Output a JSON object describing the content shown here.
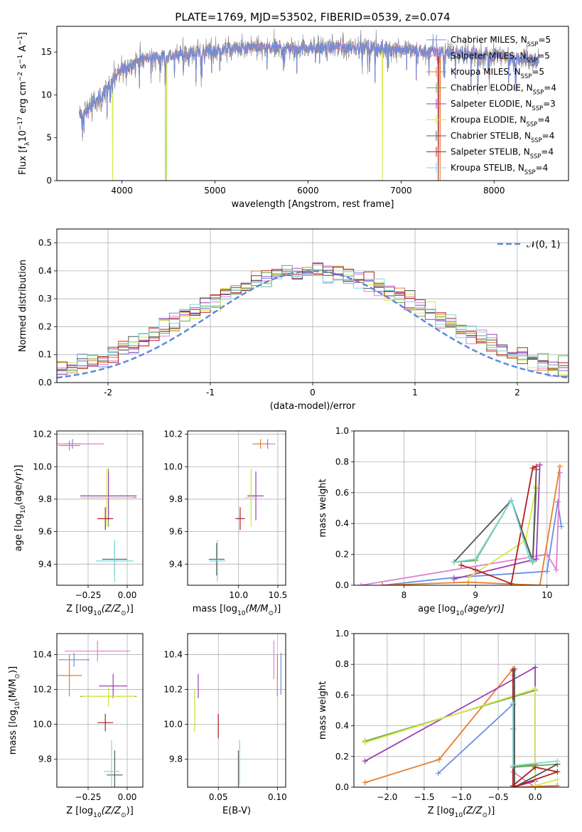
{
  "figure_title": "PLATE=1769, MJD=53502, FIBERID=0539, z=0.074",
  "colors": {
    "Chabrier MILES": "#6a8fe0",
    "Salpeter MILES": "#e07fcf",
    "Kroupa MILES": "#e57f2e",
    "Chabrier ELODIE": "#6aa84f",
    "Salpeter ELODIE": "#9b3fb8",
    "Kroupa ELODIE": "#d8e84a",
    "Chabrier STELIB": "#555555",
    "Salpeter STELIB": "#b01f1f",
    "Kroupa STELIB": "#7fd8d8",
    "normal": "#5f8ad8",
    "grid": "#b0b0b0"
  },
  "chart_data": [
    {
      "type": "line",
      "panel": "spectrum",
      "xlabel": "wavelength [Angstrom, rest frame]",
      "ylabel": "Flux [f",
      "ylabel_sub": "λ",
      "ylabel_rest": "10",
      "ylabel_exp": "−17",
      "ylabel_units": " erg cm",
      "ylabel_exp2": "−2",
      "ylabel_mid": " s",
      "ylabel_exp3": "−1",
      "ylabel_end": " A",
      "ylabel_exp4": "−1",
      "ylabel_close": "]",
      "xlim": [
        3300,
        8800
      ],
      "ylim": [
        0,
        18
      ],
      "xticks": [
        4000,
        5000,
        6000,
        7000,
        8000
      ],
      "yticks": [
        0,
        5,
        10,
        15
      ],
      "legend_position": "right",
      "legend": [
        {
          "name": "Chabrier MILES, N",
          "sub": "SSP",
          "tail": "=5"
        },
        {
          "name": "Salpeter MILES, N",
          "sub": "SSP",
          "tail": "=5"
        },
        {
          "name": "Kroupa MILES, N",
          "sub": "SSP",
          "tail": "=5"
        },
        {
          "name": "Chabrier ELODIE, N",
          "sub": "SSP",
          "tail": "=4"
        },
        {
          "name": "Salpeter ELODIE, N",
          "sub": "SSP",
          "tail": "=3"
        },
        {
          "name": "Kroupa ELODIE, N",
          "sub": "SSP",
          "tail": "=4"
        },
        {
          "name": "Chabrier STELIB, N",
          "sub": "SSP",
          "tail": "=4"
        },
        {
          "name": "Salpeter STELIB, N",
          "sub": "SSP",
          "tail": "=4"
        },
        {
          "name": "Kroupa STELIB, N",
          "sub": "SSP",
          "tail": "=4"
        }
      ],
      "data_range": [
        3540,
        8480
      ],
      "continuum": [
        [
          3540,
          7.5
        ],
        [
          3700,
          9.0
        ],
        [
          3900,
          11.5
        ],
        [
          4000,
          13.0
        ],
        [
          4200,
          14.2
        ],
        [
          4500,
          14.5
        ],
        [
          5000,
          15.2
        ],
        [
          5500,
          15.5
        ],
        [
          6000,
          15.5
        ],
        [
          6500,
          15.6
        ],
        [
          7000,
          15.3
        ],
        [
          7500,
          15.0
        ],
        [
          8000,
          14.6
        ],
        [
          8480,
          14.0
        ]
      ],
      "dropouts": [
        {
          "series": "Kroupa ELODIE",
          "x": [
            3900,
            6800
          ]
        },
        {
          "series": "Kroupa STELIB",
          "x": [
            4470
          ]
        },
        {
          "series": "Kroupa ELODIE",
          "x": [
            4480
          ]
        },
        {
          "series": "Kroupa MILES",
          "x": [
            7420
          ]
        },
        {
          "series": "Salpeter STELIB",
          "x": [
            7400
          ]
        }
      ]
    },
    {
      "type": "histogram",
      "panel": "residuals",
      "xlabel": "(data-model)/error",
      "ylabel": "Normed distribution",
      "xlim": [
        -2.5,
        2.5
      ],
      "ylim": [
        0,
        0.55
      ],
      "xticks": [
        -2,
        -1,
        0,
        1,
        2
      ],
      "yticks": [
        0.0,
        0.1,
        0.2,
        0.3,
        0.4,
        0.5
      ],
      "legend_position": "top-right",
      "curve_label": "𝒩(0, 1)",
      "bin_width": 0.1
    },
    {
      "type": "scatter",
      "panel": "age_vs_Z",
      "xlabel": "Z [log",
      "xlabel_sub": "10",
      "xlabel_rest": "(Z/Z",
      "xlabel_sub2": "⊙",
      "xlabel_close": ")]",
      "ylabel": "age  [log",
      "ylabel_sub": "10",
      "ylabel_rest": "(age/yr)]",
      "xlim": [
        -0.45,
        0.1
      ],
      "ylim": [
        9.27,
        10.22
      ],
      "xticks": [
        -0.25,
        0.0
      ],
      "xticklabels": [
        "−0.25",
        "0.00"
      ],
      "yticks": [
        9.4,
        9.6,
        9.8,
        10.0,
        10.2
      ],
      "points": [
        {
          "series": "Chabrier MILES",
          "x": -0.35,
          "y": 10.14,
          "xerr": 0.05,
          "yerr": 0.03
        },
        {
          "series": "Salpeter MILES",
          "x": -0.3,
          "y": 10.14,
          "xerr": 0.15,
          "yerr": 0.0
        },
        {
          "series": "Kroupa MILES",
          "x": -0.37,
          "y": 10.13,
          "xerr": 0.07,
          "yerr": 0.03
        },
        {
          "series": "Chabrier ELODIE",
          "x": -0.12,
          "y": 9.81,
          "xerr": 0.18,
          "yerr": 0.18
        },
        {
          "series": "Salpeter ELODIE",
          "x": -0.12,
          "y": 9.82,
          "xerr": 0.18,
          "yerr": 0.15
        },
        {
          "series": "Kroupa ELODIE",
          "x": -0.13,
          "y": 9.81,
          "xerr": 0.17,
          "yerr": 0.18
        },
        {
          "series": "Chabrier STELIB",
          "x": -0.08,
          "y": 9.43,
          "xerr": 0.08,
          "yerr": 0.1
        },
        {
          "series": "Salpeter STELIB",
          "x": -0.14,
          "y": 9.68,
          "xerr": 0.05,
          "yerr": 0.07
        },
        {
          "series": "Kroupa STELIB",
          "x": -0.08,
          "y": 9.42,
          "xerr": 0.12,
          "yerr": 0.13
        }
      ]
    },
    {
      "type": "scatter",
      "panel": "age_vs_mass",
      "xlabel": "mass [log",
      "xlabel_sub": "10",
      "xlabel_rest": "(M/M",
      "xlabel_sub2": "⊙",
      "xlabel_close": ")]",
      "xlim": [
        9.35,
        10.6
      ],
      "ylim": [
        9.27,
        10.22
      ],
      "xticks": [
        10.0,
        10.5
      ],
      "xticklabels": [
        "10.0",
        "10.5"
      ],
      "yticks": [
        9.4,
        9.6,
        9.8,
        10.0,
        10.2
      ],
      "points": [
        {
          "series": "Chabrier MILES",
          "x": 10.37,
          "y": 10.14,
          "xerr": 0.03,
          "yerr": 0.03
        },
        {
          "series": "Salpeter MILES",
          "x": 10.42,
          "y": 10.14,
          "xerr": 0.05,
          "yerr": 0.0
        },
        {
          "series": "Kroupa MILES",
          "x": 10.28,
          "y": 10.14,
          "xerr": 0.1,
          "yerr": 0.03
        },
        {
          "series": "Chabrier ELODIE",
          "x": 10.16,
          "y": 9.82,
          "xerr": 0.05,
          "yerr": 0.15
        },
        {
          "series": "Salpeter ELODIE",
          "x": 10.22,
          "y": 9.82,
          "xerr": 0.1,
          "yerr": 0.15
        },
        {
          "series": "Kroupa ELODIE",
          "x": 10.16,
          "y": 9.81,
          "xerr": 0.08,
          "yerr": 0.18
        },
        {
          "series": "Chabrier STELIB",
          "x": 9.72,
          "y": 9.43,
          "xerr": 0.1,
          "yerr": 0.1
        },
        {
          "series": "Salpeter STELIB",
          "x": 10.02,
          "y": 9.68,
          "xerr": 0.06,
          "yerr": 0.07
        },
        {
          "series": "Kroupa STELIB",
          "x": 9.73,
          "y": 9.42,
          "xerr": 0.1,
          "yerr": 0.13
        }
      ]
    },
    {
      "type": "line",
      "panel": "weight_vs_age",
      "xlabel": "age  [log",
      "xlabel_sub": "10",
      "xlabel_rest": "(age/yr)]",
      "ylabel": "mass weight",
      "xlim": [
        7.3,
        10.3
      ],
      "ylim": [
        0,
        1.0
      ],
      "xticks": [
        8,
        9,
        10
      ],
      "yticks": [
        0.0,
        0.2,
        0.4,
        0.6,
        0.8,
        1.0
      ],
      "series": [
        {
          "name": "Chabrier MILES",
          "x": [
            7.7,
            8.7,
            10.0,
            10.15,
            10.2
          ],
          "y": [
            0.0,
            0.05,
            0.09,
            0.54,
            0.38
          ]
        },
        {
          "name": "Salpeter MILES",
          "x": [
            7.4,
            10.0,
            10.13,
            10.18
          ],
          "y": [
            0.0,
            0.2,
            0.1,
            0.73
          ]
        },
        {
          "name": "Kroupa MILES",
          "x": [
            7.7,
            8.9,
            9.9,
            10.18
          ],
          "y": [
            0.0,
            0.02,
            0.0,
            0.77
          ]
        },
        {
          "name": "Chabrier ELODIE",
          "x": [
            8.7,
            9.0,
            9.5,
            9.8,
            9.85
          ],
          "y": [
            0.15,
            0.16,
            0.55,
            0.15,
            0.63
          ]
        },
        {
          "name": "Salpeter ELODIE",
          "x": [
            8.7,
            9.85,
            9.9
          ],
          "y": [
            0.04,
            0.17,
            0.78
          ]
        },
        {
          "name": "Kroupa ELODIE",
          "x": [
            8.9,
            9.7,
            9.85
          ],
          "y": [
            0.05,
            0.29,
            0.64
          ]
        },
        {
          "name": "Chabrier STELIB",
          "x": [
            8.7,
            9.5,
            9.8,
            9.85
          ],
          "y": [
            0.15,
            0.55,
            0.16,
            0.75
          ]
        },
        {
          "name": "Salpeter STELIB",
          "x": [
            8.8,
            9.0,
            9.5,
            9.8,
            9.85
          ],
          "y": [
            0.13,
            0.1,
            0.01,
            0.76,
            0.77
          ]
        },
        {
          "name": "Kroupa STELIB",
          "x": [
            8.7,
            9.0,
            9.5,
            9.75,
            9.8
          ],
          "y": [
            0.15,
            0.17,
            0.55,
            0.18,
            0.16
          ]
        }
      ]
    },
    {
      "type": "scatter",
      "panel": "mass_vs_Z",
      "xlabel": "Z [log",
      "xlabel_sub": "10",
      "xlabel_rest": "(Z/Z",
      "xlabel_sub2": "⊙",
      "xlabel_close": ")]",
      "ylabel": "mass [log",
      "ylabel_sub": "10",
      "ylabel_rest": "(M/M",
      "ylabel_sub2": "⊙",
      "ylabel_close": ")]",
      "xlim": [
        -0.45,
        0.1
      ],
      "ylim": [
        9.64,
        10.52
      ],
      "xticks": [
        -0.25,
        0.0
      ],
      "xticklabels": [
        "−0.25",
        "0.00"
      ],
      "yticks": [
        9.8,
        10.0,
        10.2,
        10.4
      ],
      "points": [
        {
          "series": "Chabrier MILES",
          "x": -0.34,
          "y": 10.37,
          "xerr": 0.1,
          "yerr": 0.04
        },
        {
          "series": "Salpeter MILES",
          "x": -0.19,
          "y": 10.42,
          "xerr": 0.21,
          "yerr": 0.06
        },
        {
          "series": "Kroupa MILES",
          "x": -0.37,
          "y": 10.28,
          "xerr": 0.08,
          "yerr": 0.12
        },
        {
          "series": "Chabrier ELODIE",
          "x": -0.12,
          "y": 10.16,
          "xerr": 0.18,
          "yerr": 0.05
        },
        {
          "series": "Salpeter ELODIE",
          "x": -0.09,
          "y": 10.22,
          "xerr": 0.09,
          "yerr": 0.07
        },
        {
          "series": "Kroupa ELODIE",
          "x": -0.12,
          "y": 10.16,
          "xerr": 0.17,
          "yerr": 0.06
        },
        {
          "series": "Chabrier STELIB",
          "x": -0.08,
          "y": 9.71,
          "xerr": 0.05,
          "yerr": 0.14
        },
        {
          "series": "Salpeter STELIB",
          "x": -0.14,
          "y": 10.01,
          "xerr": 0.05,
          "yerr": 0.05
        },
        {
          "series": "Kroupa STELIB",
          "x": -0.1,
          "y": 9.73,
          "xerr": 0.05,
          "yerr": 0.18
        }
      ]
    },
    {
      "type": "scatter",
      "panel": "mass_vs_ebv",
      "xlabel": "E(B-V)",
      "xlim": [
        0.024,
        0.107
      ],
      "ylim": [
        9.64,
        10.52
      ],
      "xticks": [
        0.05,
        0.1
      ],
      "xticklabels": [
        "0.05",
        "0.10"
      ],
      "yticks": [
        9.8,
        10.0,
        10.2,
        10.4
      ],
      "points": [
        {
          "series": "Chabrier MILES",
          "x": 0.103,
          "y": 10.29,
          "xerr": 0.0,
          "yerr": 0.12
        },
        {
          "series": "Salpeter MILES",
          "x": 0.097,
          "y": 10.37,
          "xerr": 0.0,
          "yerr": 0.11
        },
        {
          "series": "Kroupa MILES",
          "x": 0.1,
          "y": 10.28,
          "xerr": 0.0,
          "yerr": 0.12
        },
        {
          "series": "Chabrier ELODIE",
          "x": 0.03,
          "y": 10.08,
          "xerr": 0.0,
          "yerr": 0.12
        },
        {
          "series": "Salpeter ELODIE",
          "x": 0.033,
          "y": 10.22,
          "xerr": 0.0,
          "yerr": 0.07
        },
        {
          "series": "Kroupa ELODIE",
          "x": 0.03,
          "y": 10.08,
          "xerr": 0.0,
          "yerr": 0.12
        },
        {
          "series": "Chabrier STELIB",
          "x": 0.067,
          "y": 9.71,
          "xerr": 0.0,
          "yerr": 0.14
        },
        {
          "series": "Salpeter STELIB",
          "x": 0.05,
          "y": 9.99,
          "xerr": 0.0,
          "yerr": 0.07
        },
        {
          "series": "Kroupa STELIB",
          "x": 0.068,
          "y": 9.78,
          "xerr": 0.0,
          "yerr": 0.13
        }
      ]
    },
    {
      "type": "line",
      "panel": "weight_vs_Z",
      "xlabel": "Z [log",
      "xlabel_sub": "10",
      "xlabel_rest": "(Z/Z",
      "xlabel_sub2": "⊙",
      "xlabel_close": ")]",
      "ylabel": "mass weight",
      "xlim": [
        -2.45,
        0.45
      ],
      "ylim": [
        0,
        1.0
      ],
      "xticks": [
        -2.0,
        -1.5,
        -1.0,
        -0.5,
        0.0
      ],
      "xticklabels": [
        "−2.0",
        "−1.5",
        "−1.0",
        "−0.5",
        "0.0"
      ],
      "yticks": [
        0.0,
        0.2,
        0.4,
        0.6,
        0.8,
        1.0
      ],
      "series": [
        {
          "name": "Chabrier MILES",
          "x": [
            -1.31,
            -0.3,
            -0.3,
            -0.28
          ],
          "y": [
            0.09,
            0.54,
            0.38,
            0.0
          ]
        },
        {
          "name": "Salpeter MILES",
          "x": [
            -0.3,
            -0.3,
            0.0,
            0.3
          ],
          "y": [
            0.73,
            0.1,
            0.0,
            0.0
          ]
        },
        {
          "name": "Kroupa MILES",
          "x": [
            -2.3,
            -1.3,
            -0.3,
            -0.28,
            0.3
          ],
          "y": [
            0.03,
            0.18,
            0.77,
            0.0,
            0.01
          ]
        },
        {
          "name": "Chabrier ELODIE",
          "x": [
            -2.3,
            0.0,
            0.0,
            -0.3,
            0.3
          ],
          "y": [
            0.3,
            0.63,
            0.15,
            0.13,
            0.15
          ]
        },
        {
          "name": "Salpeter ELODIE",
          "x": [
            -2.3,
            0.0,
            0.0,
            -0.3
          ],
          "y": [
            0.17,
            0.78,
            0.04,
            0.0
          ]
        },
        {
          "name": "Kroupa ELODIE",
          "x": [
            -2.3,
            0.0,
            0.0,
            0.3
          ],
          "y": [
            0.29,
            0.64,
            0.01,
            0.05
          ]
        },
        {
          "name": "Chabrier STELIB",
          "x": [
            -0.28,
            -0.28,
            0.3
          ],
          "y": [
            0.77,
            0.0,
            0.15
          ]
        },
        {
          "name": "Salpeter STELIB",
          "x": [
            -0.3,
            -0.3,
            0.0,
            0.3,
            -0.3
          ],
          "y": [
            0.76,
            0.01,
            0.13,
            0.1,
            0.0
          ]
        },
        {
          "name": "Kroupa STELIB",
          "x": [
            -0.3,
            -0.3,
            0.3
          ],
          "y": [
            0.55,
            0.14,
            0.17
          ]
        }
      ]
    }
  ]
}
